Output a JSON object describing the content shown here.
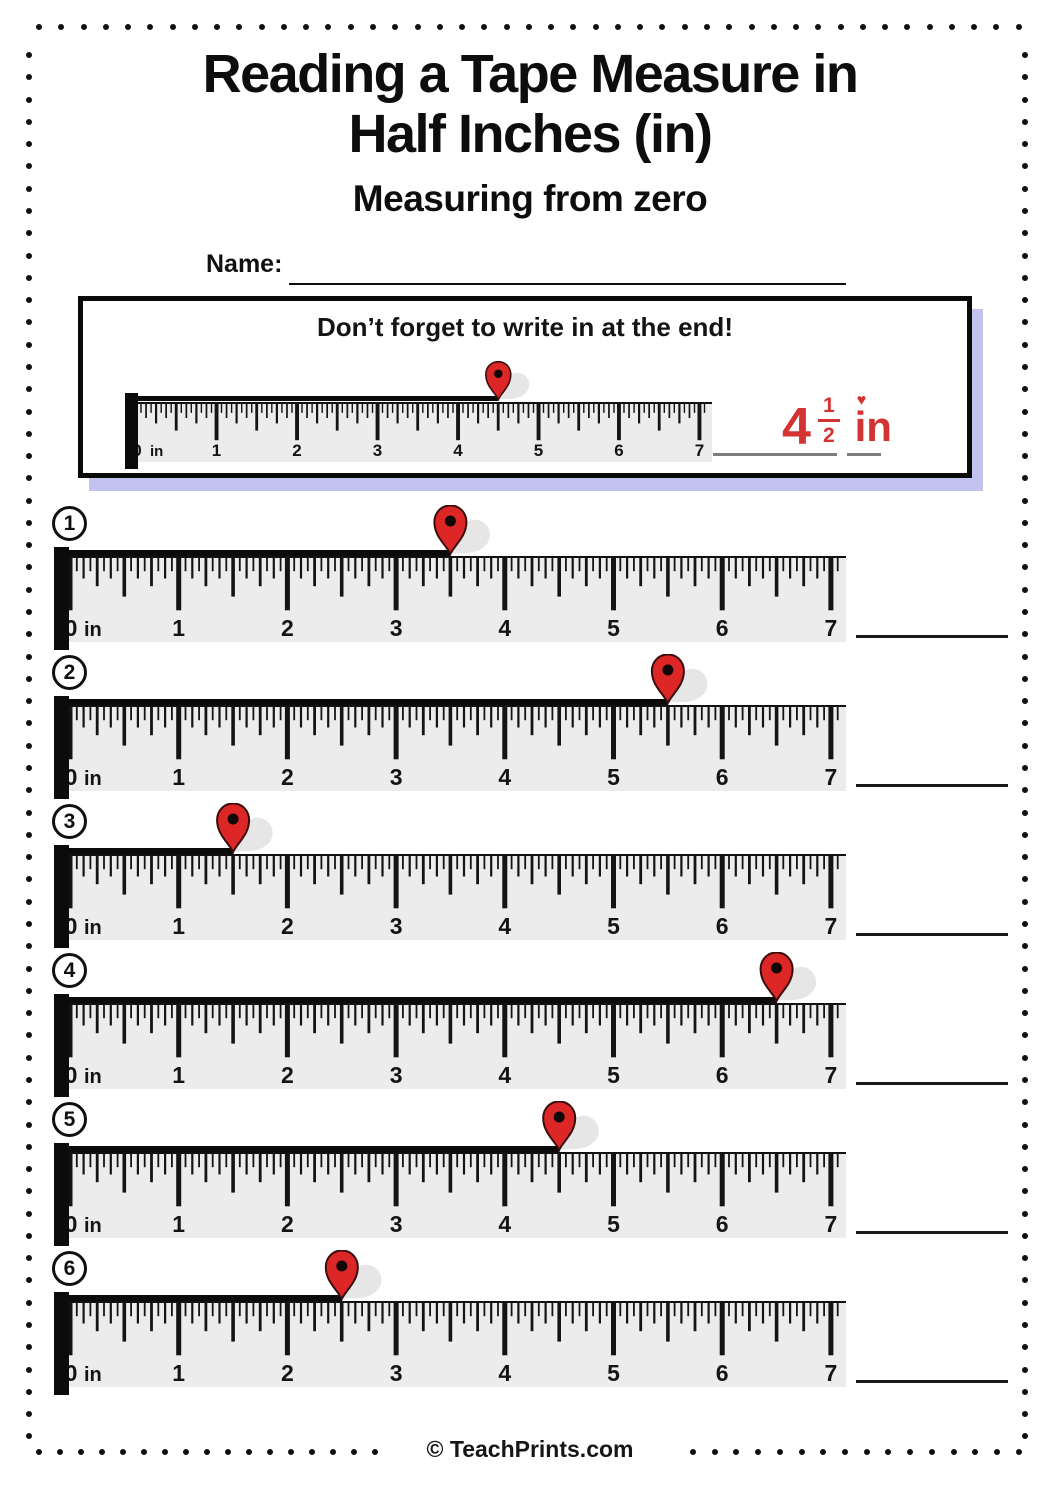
{
  "page": {
    "title_line1": "Reading a Tape Measure in",
    "title_line2": "Half Inches (in)",
    "subtitle": "Measuring from zero",
    "name_label": "Name:",
    "footer": "© TeachPrints.com"
  },
  "example_box": {
    "instruction": "Don’t forget to write in at the end!",
    "measurement_in": 4.5,
    "answer": {
      "whole": "4",
      "numerator": "1",
      "denominator": "2",
      "unit": "in"
    }
  },
  "ruler": {
    "unit_label": "in",
    "tick_numbers": [
      "0",
      "1",
      "2",
      "3",
      "4",
      "5",
      "6",
      "7"
    ],
    "max_inches": 7,
    "subdivisions_per_inch": 16
  },
  "problems": [
    {
      "number": "1",
      "measurement_in": 3.5
    },
    {
      "number": "2",
      "measurement_in": 5.5
    },
    {
      "number": "3",
      "measurement_in": 1.5
    },
    {
      "number": "4",
      "measurement_in": 6.5
    },
    {
      "number": "5",
      "measurement_in": 4.5
    },
    {
      "number": "6",
      "measurement_in": 2.5
    }
  ],
  "colors": {
    "pin_red": "#dd2727",
    "pin_outline": "#3a0d0d",
    "pin_dot": "#120707",
    "pin_shadow": "#e6e6e6",
    "answer_red": "#d43333",
    "box_shadow_lavender": "#c2c2ee",
    "ruler_body_gray": "#ececec",
    "ink_black": "#101010"
  }
}
